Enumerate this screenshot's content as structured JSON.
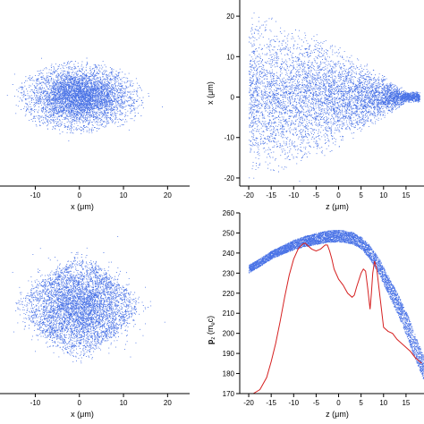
{
  "colors": {
    "points": "#4a73e6",
    "line": "#d62020",
    "axis": "#000000",
    "background": "#ffffff"
  },
  "chart_data": [
    {
      "type": "scatter",
      "panel": "top-left",
      "xlabel": "x (μm)",
      "ylabel": "",
      "xlim": [
        -18,
        25
      ],
      "xticks": [
        -10,
        0,
        10,
        20
      ],
      "cloud": {
        "shape": "ellipse",
        "center": [
          0,
          0
        ],
        "radius": [
          13,
          8
        ],
        "points": 5000
      }
    },
    {
      "type": "scatter",
      "panel": "top-right",
      "xlabel": "z (μm)",
      "ylabel": "x (μm)",
      "xlim": [
        -22,
        19
      ],
      "ylim": [
        -22,
        24
      ],
      "xticks": [
        -20,
        -15,
        -10,
        -5,
        0,
        5,
        10,
        15
      ],
      "yticks": [
        -20,
        -10,
        0,
        10,
        20
      ],
      "cloud": {
        "shape": "wedge",
        "apex_x": 16,
        "halfwidth_at_x": [
          [
            -18,
            16
          ],
          [
            -5,
            12
          ],
          [
            5,
            7
          ],
          [
            15,
            1
          ]
        ],
        "points": 6000
      }
    },
    {
      "type": "scatter",
      "panel": "bottom-left",
      "xlabel": "x (μm)",
      "ylabel": "",
      "xlim": [
        -18,
        25
      ],
      "xticks": [
        -10,
        0,
        10,
        20
      ],
      "cloud": {
        "shape": "diamond",
        "center": [
          0,
          0
        ],
        "radius": [
          15,
          14
        ],
        "points": 6000
      }
    },
    {
      "type": "scatter",
      "panel": "bottom-right",
      "xlabel": "z (μm)",
      "ylabel": "p_z (m_ec)",
      "xlim": [
        -22,
        19
      ],
      "ylim": [
        170,
        260
      ],
      "xticks": [
        -20,
        -15,
        -10,
        -5,
        0,
        5,
        10,
        15
      ],
      "yticks": [
        170,
        180,
        190,
        200,
        210,
        220,
        230,
        240,
        250,
        260
      ],
      "band": {
        "x": [
          -20,
          -17,
          -15,
          -12,
          -10,
          -8,
          -5,
          -3,
          0,
          3,
          5,
          7,
          9,
          11,
          13,
          15,
          17,
          19
        ],
        "center": [
          232,
          236,
          239,
          242,
          244,
          245.5,
          247,
          248,
          248.5,
          247.5,
          245,
          240,
          233,
          224,
          215,
          205,
          193,
          182
        ],
        "halfwidth": [
          2,
          2,
          2,
          2.2,
          2.4,
          2.6,
          2.8,
          3,
          3,
          3,
          3,
          3.5,
          4,
          4.5,
          5,
          6,
          6,
          6
        ]
      },
      "series": [
        {
          "type": "line",
          "x": [
            -19,
            -17.5,
            -16,
            -15,
            -14,
            -13,
            -12,
            -11,
            -10,
            -9,
            -8,
            -7.5,
            -7,
            -6,
            -5,
            -4,
            -3,
            -2.5,
            -2,
            -1.5,
            -1,
            0,
            1,
            2,
            3,
            3.5,
            4,
            5,
            5.5,
            6,
            6.5,
            7,
            7.3,
            7.6,
            8,
            8.5,
            9,
            10,
            11,
            12,
            13,
            14,
            15,
            16,
            17,
            18.5
          ],
          "y": [
            170,
            172,
            178,
            186,
            195,
            206,
            218,
            229,
            237,
            242,
            244.5,
            245,
            244,
            242,
            241,
            242,
            244,
            244,
            241,
            237,
            232,
            227,
            224,
            220,
            218,
            219,
            223,
            230,
            232,
            231,
            222,
            212,
            220,
            230,
            236,
            232,
            222,
            203,
            201,
            200,
            197,
            195,
            193,
            191,
            188,
            185
          ]
        }
      ]
    }
  ]
}
